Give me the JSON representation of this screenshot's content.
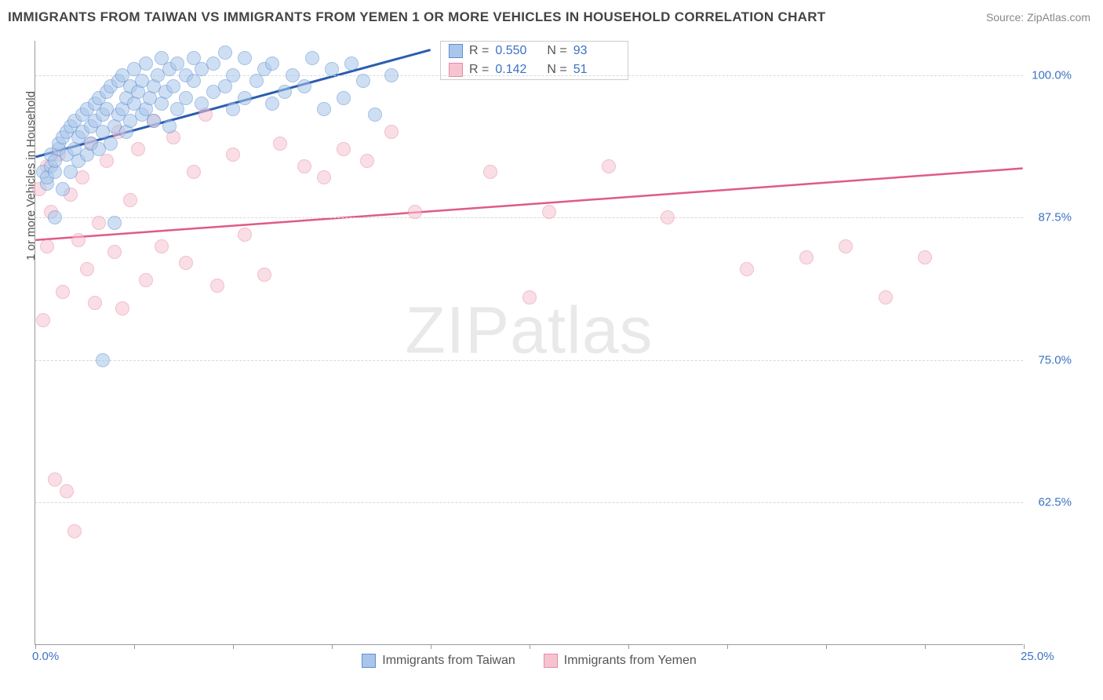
{
  "title": "IMMIGRANTS FROM TAIWAN VS IMMIGRANTS FROM YEMEN 1 OR MORE VEHICLES IN HOUSEHOLD CORRELATION CHART",
  "source": "Source: ZipAtlas.com",
  "watermark_text": "ZIPatlas",
  "chart": {
    "type": "scatter",
    "ylabel": "1 or more Vehicles in Household",
    "xlim": [
      0,
      25
    ],
    "ylim": [
      50,
      103
    ],
    "x_ticks": [
      0,
      2.5,
      5,
      7.5,
      10,
      12.5,
      15,
      17.5,
      20,
      22.5,
      25
    ],
    "x_tick_labels": {
      "0": "0.0%",
      "25": "25.0%"
    },
    "y_ticks": [
      62.5,
      75,
      87.5,
      100
    ],
    "y_tick_labels": {
      "62.5": "62.5%",
      "75": "75.0%",
      "87.5": "87.5%",
      "100": "100.0%"
    },
    "grid_color": "#d8d8d8",
    "axis_color": "#999999",
    "background_color": "#ffffff",
    "label_color": "#555555",
    "tick_label_color": "#3b72c4",
    "label_fontsize": 15,
    "tick_fontsize": 15,
    "point_radius": 9,
    "point_opacity": 0.55,
    "series": [
      {
        "name": "Immigrants from Taiwan",
        "color_fill": "#a9c6ea",
        "color_stroke": "#5d8fd1",
        "line_color": "#2a5db0",
        "line_width": 3,
        "R": "0.550",
        "N": "93",
        "trend": {
          "x1": 0,
          "y1": 92.8,
          "x2": 10,
          "y2": 102.2
        },
        "points": [
          [
            0.2,
            91.5
          ],
          [
            0.3,
            90.5
          ],
          [
            0.3,
            91.0
          ],
          [
            0.4,
            92.0
          ],
          [
            0.4,
            93.0
          ],
          [
            0.5,
            91.5
          ],
          [
            0.5,
            92.5
          ],
          [
            0.6,
            93.5
          ],
          [
            0.6,
            94.0
          ],
          [
            0.7,
            90.0
          ],
          [
            0.7,
            94.5
          ],
          [
            0.8,
            93.0
          ],
          [
            0.8,
            95.0
          ],
          [
            0.9,
            91.5
          ],
          [
            0.9,
            95.5
          ],
          [
            1.0,
            93.5
          ],
          [
            1.0,
            96.0
          ],
          [
            1.1,
            92.5
          ],
          [
            1.1,
            94.5
          ],
          [
            1.2,
            95.0
          ],
          [
            1.2,
            96.5
          ],
          [
            1.3,
            93.0
          ],
          [
            1.3,
            97.0
          ],
          [
            1.4,
            94.0
          ],
          [
            1.4,
            95.5
          ],
          [
            1.5,
            96.0
          ],
          [
            1.5,
            97.5
          ],
          [
            1.6,
            93.5
          ],
          [
            1.6,
            98.0
          ],
          [
            1.7,
            95.0
          ],
          [
            1.7,
            96.5
          ],
          [
            1.8,
            97.0
          ],
          [
            1.8,
            98.5
          ],
          [
            1.9,
            94.0
          ],
          [
            1.9,
            99.0
          ],
          [
            2.0,
            95.5
          ],
          [
            2.0,
            87.0
          ],
          [
            2.1,
            96.5
          ],
          [
            2.1,
            99.5
          ],
          [
            2.2,
            97.0
          ],
          [
            2.2,
            100.0
          ],
          [
            2.3,
            95.0
          ],
          [
            2.3,
            98.0
          ],
          [
            2.4,
            96.0
          ],
          [
            2.4,
            99.0
          ],
          [
            2.5,
            97.5
          ],
          [
            2.5,
            100.5
          ],
          [
            2.6,
            98.5
          ],
          [
            2.7,
            96.5
          ],
          [
            2.7,
            99.5
          ],
          [
            2.8,
            97.0
          ],
          [
            2.8,
            101.0
          ],
          [
            2.9,
            98.0
          ],
          [
            3.0,
            96.0
          ],
          [
            3.0,
            99.0
          ],
          [
            3.1,
            100.0
          ],
          [
            3.2,
            97.5
          ],
          [
            3.2,
            101.5
          ],
          [
            3.3,
            98.5
          ],
          [
            3.4,
            95.5
          ],
          [
            3.4,
            100.5
          ],
          [
            3.5,
            99.0
          ],
          [
            3.6,
            97.0
          ],
          [
            3.6,
            101.0
          ],
          [
            3.8,
            98.0
          ],
          [
            3.8,
            100.0
          ],
          [
            4.0,
            99.5
          ],
          [
            4.0,
            101.5
          ],
          [
            4.2,
            97.5
          ],
          [
            4.2,
            100.5
          ],
          [
            4.5,
            98.5
          ],
          [
            4.5,
            101.0
          ],
          [
            4.8,
            99.0
          ],
          [
            4.8,
            102.0
          ],
          [
            5.0,
            97.0
          ],
          [
            5.0,
            100.0
          ],
          [
            5.3,
            98.0
          ],
          [
            5.3,
            101.5
          ],
          [
            5.6,
            99.5
          ],
          [
            5.8,
            100.5
          ],
          [
            6.0,
            97.5
          ],
          [
            6.0,
            101.0
          ],
          [
            6.3,
            98.5
          ],
          [
            6.5,
            100.0
          ],
          [
            6.8,
            99.0
          ],
          [
            7.0,
            101.5
          ],
          [
            7.3,
            97.0
          ],
          [
            7.5,
            100.5
          ],
          [
            7.8,
            98.0
          ],
          [
            8.0,
            101.0
          ],
          [
            8.3,
            99.5
          ],
          [
            8.6,
            96.5
          ],
          [
            9.0,
            100.0
          ],
          [
            1.7,
            75.0
          ],
          [
            0.5,
            87.5
          ]
        ]
      },
      {
        "name": "Immigrants from Yemen",
        "color_fill": "#f6c4d1",
        "color_stroke": "#e88aa5",
        "line_color": "#e05a84",
        "line_width": 2.5,
        "R": "0.142",
        "N": "51",
        "trend": {
          "x1": 0,
          "y1": 85.5,
          "x2": 25,
          "y2": 91.8
        },
        "points": [
          [
            0.1,
            90.0
          ],
          [
            0.2,
            78.5
          ],
          [
            0.3,
            92.0
          ],
          [
            0.4,
            88.0
          ],
          [
            0.5,
            64.5
          ],
          [
            0.6,
            93.0
          ],
          [
            0.7,
            81.0
          ],
          [
            0.8,
            63.5
          ],
          [
            0.9,
            89.5
          ],
          [
            1.0,
            60.0
          ],
          [
            1.1,
            85.5
          ],
          [
            1.2,
            91.0
          ],
          [
            1.3,
            83.0
          ],
          [
            1.4,
            94.0
          ],
          [
            1.5,
            80.0
          ],
          [
            1.6,
            87.0
          ],
          [
            1.8,
            92.5
          ],
          [
            2.0,
            84.5
          ],
          [
            2.1,
            95.0
          ],
          [
            2.2,
            79.5
          ],
          [
            2.4,
            89.0
          ],
          [
            2.6,
            93.5
          ],
          [
            2.8,
            82.0
          ],
          [
            3.0,
            96.0
          ],
          [
            3.2,
            85.0
          ],
          [
            3.5,
            94.5
          ],
          [
            3.8,
            83.5
          ],
          [
            4.0,
            91.5
          ],
          [
            4.3,
            96.5
          ],
          [
            4.6,
            81.5
          ],
          [
            5.0,
            93.0
          ],
          [
            5.3,
            86.0
          ],
          [
            5.8,
            82.5
          ],
          [
            6.2,
            94.0
          ],
          [
            6.8,
            92.0
          ],
          [
            7.3,
            91.0
          ],
          [
            7.8,
            93.5
          ],
          [
            8.4,
            92.5
          ],
          [
            9.0,
            95.0
          ],
          [
            9.6,
            88.0
          ],
          [
            11.5,
            91.5
          ],
          [
            12.5,
            80.5
          ],
          [
            13.0,
            88.0
          ],
          [
            14.5,
            92.0
          ],
          [
            16.0,
            87.5
          ],
          [
            18.0,
            83.0
          ],
          [
            19.5,
            84.0
          ],
          [
            20.5,
            85.0
          ],
          [
            21.5,
            80.5
          ],
          [
            22.5,
            84.0
          ],
          [
            0.3,
            85.0
          ]
        ]
      }
    ]
  },
  "stats_box": {
    "rows": [
      {
        "swatch_fill": "#a9c6ea",
        "swatch_stroke": "#5d8fd1",
        "r_label": "R =",
        "r_val": "0.550",
        "n_label": "N =",
        "n_val": "93"
      },
      {
        "swatch_fill": "#f6c4d1",
        "swatch_stroke": "#e88aa5",
        "r_label": "R =",
        "r_val": "0.142",
        "n_label": "N =",
        "n_val": "51"
      }
    ]
  },
  "legend": [
    {
      "swatch_fill": "#a9c6ea",
      "swatch_stroke": "#5d8fd1",
      "label": "Immigrants from Taiwan"
    },
    {
      "swatch_fill": "#f6c4d1",
      "swatch_stroke": "#e88aa5",
      "label": "Immigrants from Yemen"
    }
  ]
}
